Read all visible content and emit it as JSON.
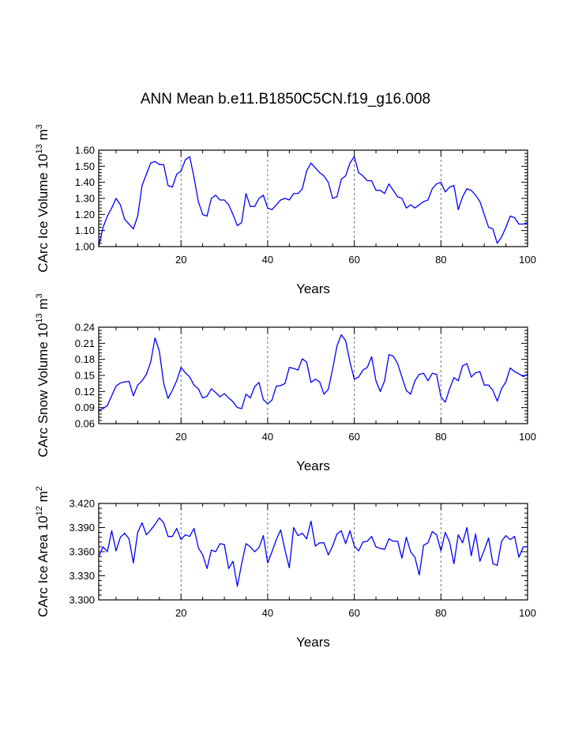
{
  "title": "ANN Mean b.e11.B1850C5CN.f19_g16.008",
  "colors": {
    "line": "#0000ff",
    "axis": "#000000",
    "grid": "#555555"
  },
  "chart_data": [
    {
      "type": "line",
      "xlabel": "Years",
      "ylabel_prefix": "CArc Ice Volume 10",
      "ylabel_exp": "13",
      "ylabel_unit": " m",
      "ylabel_unit_exp": "3",
      "xlim": [
        1,
        100
      ],
      "ylim": [
        1.0,
        1.6
      ],
      "xticks": [
        20,
        40,
        60,
        80,
        100
      ],
      "xtick_labels": [
        "20",
        "40",
        "60",
        "80",
        "100"
      ],
      "yticks": [
        1.0,
        1.1,
        1.2,
        1.3,
        1.4,
        1.5,
        1.6
      ],
      "ytick_labels": [
        "1.00",
        "1.10",
        "1.20",
        "1.30",
        "1.40",
        "1.50",
        "1.60"
      ],
      "vgrid": [
        20,
        40,
        60,
        80
      ],
      "x_start": 1,
      "values": [
        1.0,
        1.12,
        1.19,
        1.24,
        1.3,
        1.26,
        1.17,
        1.14,
        1.11,
        1.19,
        1.38,
        1.45,
        1.52,
        1.53,
        1.51,
        1.51,
        1.38,
        1.37,
        1.45,
        1.47,
        1.54,
        1.56,
        1.43,
        1.28,
        1.2,
        1.19,
        1.3,
        1.32,
        1.29,
        1.29,
        1.26,
        1.2,
        1.13,
        1.15,
        1.33,
        1.25,
        1.25,
        1.3,
        1.32,
        1.24,
        1.23,
        1.26,
        1.29,
        1.3,
        1.29,
        1.33,
        1.33,
        1.36,
        1.47,
        1.52,
        1.49,
        1.46,
        1.44,
        1.4,
        1.3,
        1.31,
        1.42,
        1.44,
        1.52,
        1.56,
        1.46,
        1.44,
        1.41,
        1.41,
        1.35,
        1.35,
        1.33,
        1.39,
        1.35,
        1.31,
        1.3,
        1.24,
        1.26,
        1.24,
        1.26,
        1.28,
        1.29,
        1.36,
        1.39,
        1.4,
        1.34,
        1.37,
        1.38,
        1.23,
        1.31,
        1.36,
        1.35,
        1.32,
        1.28,
        1.2,
        1.12,
        1.11,
        1.02,
        1.06,
        1.12,
        1.19,
        1.18,
        1.14,
        1.14,
        1.15
      ]
    },
    {
      "type": "line",
      "xlabel": "Years",
      "ylabel_prefix": "CArc Snow Volume 10",
      "ylabel_exp": "13",
      "ylabel_unit": " m",
      "ylabel_unit_exp": "3",
      "xlim": [
        1,
        100
      ],
      "ylim": [
        0.06,
        0.24
      ],
      "xticks": [
        20,
        40,
        60,
        80,
        100
      ],
      "xtick_labels": [
        "20",
        "40",
        "60",
        "80",
        "100"
      ],
      "yticks": [
        0.06,
        0.09,
        0.12,
        0.15,
        0.18,
        0.21,
        0.24
      ],
      "ytick_labels": [
        "0.06",
        "0.09",
        "0.12",
        "0.15",
        "0.18",
        "0.21",
        "0.24"
      ],
      "vgrid": [
        20,
        40,
        60,
        80
      ],
      "x_start": 1,
      "values": [
        0.085,
        0.088,
        0.094,
        0.112,
        0.13,
        0.136,
        0.138,
        0.139,
        0.112,
        0.132,
        0.14,
        0.152,
        0.175,
        0.22,
        0.195,
        0.135,
        0.107,
        0.122,
        0.14,
        0.165,
        0.155,
        0.147,
        0.132,
        0.125,
        0.108,
        0.111,
        0.125,
        0.118,
        0.11,
        0.116,
        0.108,
        0.101,
        0.09,
        0.088,
        0.115,
        0.108,
        0.129,
        0.137,
        0.105,
        0.097,
        0.104,
        0.13,
        0.131,
        0.135,
        0.165,
        0.163,
        0.16,
        0.181,
        0.175,
        0.137,
        0.143,
        0.138,
        0.115,
        0.124,
        0.162,
        0.205,
        0.226,
        0.215,
        0.175,
        0.143,
        0.147,
        0.16,
        0.165,
        0.185,
        0.14,
        0.12,
        0.14,
        0.189,
        0.186,
        0.172,
        0.147,
        0.122,
        0.115,
        0.14,
        0.152,
        0.154,
        0.14,
        0.154,
        0.152,
        0.11,
        0.1,
        0.125,
        0.146,
        0.14,
        0.168,
        0.172,
        0.147,
        0.155,
        0.157,
        0.132,
        0.132,
        0.122,
        0.102,
        0.125,
        0.138,
        0.164,
        0.157,
        0.153,
        0.148,
        0.152
      ]
    },
    {
      "type": "line",
      "xlabel": "Years",
      "ylabel_prefix": "CArc Ice Area 10",
      "ylabel_exp": "12",
      "ylabel_unit": " m",
      "ylabel_unit_exp": "2",
      "xlim": [
        1,
        100
      ],
      "ylim": [
        3.3,
        3.42
      ],
      "xticks": [
        20,
        40,
        60,
        80,
        100
      ],
      "xtick_labels": [
        "20",
        "40",
        "60",
        "80",
        "100"
      ],
      "yticks": [
        3.3,
        3.33,
        3.36,
        3.39,
        3.42
      ],
      "ytick_labels": [
        "3.300",
        "3.330",
        "3.360",
        "3.390",
        "3.420"
      ],
      "vgrid": [
        20,
        40,
        60,
        80
      ],
      "x_start": 1,
      "values": [
        3.354,
        3.366,
        3.36,
        3.386,
        3.361,
        3.378,
        3.383,
        3.376,
        3.346,
        3.384,
        3.396,
        3.381,
        3.387,
        3.394,
        3.402,
        3.396,
        3.379,
        3.379,
        3.389,
        3.375,
        3.381,
        3.379,
        3.389,
        3.365,
        3.356,
        3.339,
        3.362,
        3.36,
        3.37,
        3.369,
        3.339,
        3.348,
        3.317,
        3.345,
        3.37,
        3.366,
        3.36,
        3.365,
        3.38,
        3.346,
        3.36,
        3.375,
        3.387,
        3.362,
        3.34,
        3.39,
        3.38,
        3.383,
        3.376,
        3.398,
        3.367,
        3.371,
        3.371,
        3.356,
        3.367,
        3.382,
        3.386,
        3.37,
        3.386,
        3.367,
        3.361,
        3.372,
        3.373,
        3.379,
        3.366,
        3.364,
        3.363,
        3.376,
        3.373,
        3.373,
        3.352,
        3.378,
        3.36,
        3.353,
        3.331,
        3.368,
        3.371,
        3.385,
        3.381,
        3.361,
        3.384,
        3.372,
        3.345,
        3.381,
        3.371,
        3.39,
        3.355,
        3.382,
        3.348,
        3.362,
        3.377,
        3.345,
        3.343,
        3.373,
        3.38,
        3.375,
        3.379,
        3.353,
        3.366,
        3.366
      ]
    }
  ]
}
